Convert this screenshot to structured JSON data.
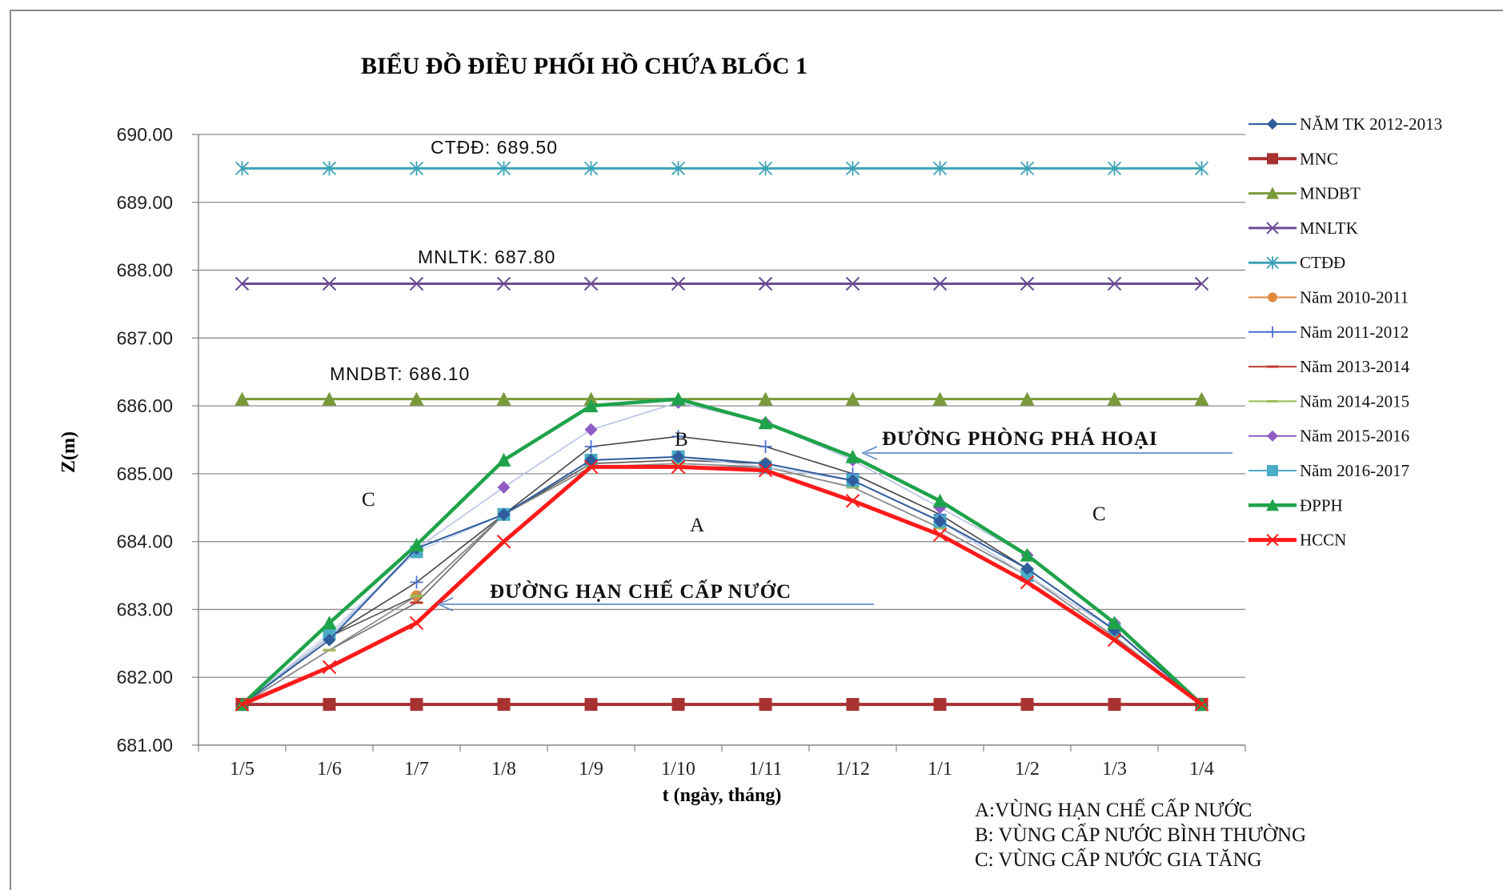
{
  "chart_data": {
    "type": "line",
    "title": "BIỂU ĐỒ ĐIỀU PHỐI HỒ CHỨA BLỐC 1",
    "xlabel": "t (ngày, tháng)",
    "ylabel": "Z(m)",
    "ylim": [
      681.0,
      690.0
    ],
    "y_ticks": [
      "681.00",
      "682.00",
      "683.00",
      "684.00",
      "685.00",
      "686.00",
      "687.00",
      "688.00",
      "689.00",
      "690.00"
    ],
    "categories": [
      "1/5",
      "1/6",
      "1/7",
      "1/8",
      "1/9",
      "1/10",
      "1/11",
      "1/12",
      "1/1",
      "1/2",
      "1/3",
      "1/4"
    ],
    "grid": "horizontal",
    "legend_position": "right",
    "series": [
      {
        "name": "NĂM TK 2012-2013",
        "color": "#2E5C9C",
        "marker": "diamond",
        "values": [
          681.6,
          682.55,
          683.9,
          684.4,
          685.2,
          685.25,
          685.15,
          684.9,
          684.3,
          683.6,
          682.7,
          681.6
        ]
      },
      {
        "name": "MNC",
        "color": "#A83232",
        "marker": "square",
        "values": [
          681.6,
          681.6,
          681.6,
          681.6,
          681.6,
          681.6,
          681.6,
          681.6,
          681.6,
          681.6,
          681.6,
          681.6
        ]
      },
      {
        "name": "MNDBT",
        "color": "#7A9A3A",
        "marker": "triangle",
        "values": [
          686.1,
          686.1,
          686.1,
          686.1,
          686.1,
          686.1,
          686.1,
          686.1,
          686.1,
          686.1,
          686.1,
          686.1
        ]
      },
      {
        "name": "MNLTK",
        "color": "#6A4C93",
        "marker": "x",
        "values": [
          687.8,
          687.8,
          687.8,
          687.8,
          687.8,
          687.8,
          687.8,
          687.8,
          687.8,
          687.8,
          687.8,
          687.8
        ]
      },
      {
        "name": "CTĐĐ",
        "color": "#3BA3B8",
        "marker": "star",
        "values": [
          689.5,
          689.5,
          689.5,
          689.5,
          689.5,
          689.5,
          689.5,
          689.5,
          689.5,
          689.5,
          689.5,
          689.5
        ]
      },
      {
        "name": "Năm 2010-2011",
        "color": "#E08A3C",
        "marker": "circle",
        "values": [
          681.6,
          682.6,
          683.2,
          684.4,
          685.15,
          685.2,
          685.15,
          684.9,
          684.3,
          683.5,
          682.7,
          681.6
        ]
      },
      {
        "name": "Năm 2011-2012",
        "color": "#4A6FD0",
        "marker": "plus",
        "values": [
          681.6,
          682.6,
          683.4,
          684.4,
          685.4,
          685.55,
          685.4,
          685.0,
          684.4,
          683.6,
          682.7,
          681.6
        ]
      },
      {
        "name": "Năm 2013-2014",
        "color": "#C0392B",
        "marker": "dash",
        "values": [
          681.6,
          682.4,
          683.1,
          684.4,
          685.1,
          685.1,
          685.1,
          684.8,
          684.2,
          683.5,
          682.6,
          681.6
        ]
      },
      {
        "name": "Năm 2014-2015",
        "color": "#9BBB59",
        "marker": "dash",
        "values": [
          681.6,
          682.4,
          683.2,
          684.4,
          685.1,
          685.15,
          685.1,
          684.8,
          684.2,
          683.5,
          682.6,
          681.6
        ]
      },
      {
        "name": "Năm 2015-2016",
        "color": "#8E5CC4",
        "marker": "diamond",
        "values": [
          681.6,
          682.6,
          683.9,
          684.8,
          685.65,
          686.05,
          685.75,
          685.2,
          684.5,
          683.8,
          682.8,
          681.6
        ]
      },
      {
        "name": "Năm 2016-2017",
        "color": "#4BACC6",
        "marker": "square",
        "values": [
          681.6,
          682.65,
          683.85,
          684.4,
          685.2,
          685.25,
          685.1,
          684.9,
          684.3,
          683.5,
          682.7,
          681.6
        ]
      },
      {
        "name": "ĐPPH",
        "color": "#1FA34A",
        "marker": "triangle",
        "values": [
          681.6,
          682.8,
          683.95,
          685.2,
          686.0,
          686.1,
          685.75,
          685.25,
          684.6,
          683.8,
          682.8,
          681.6
        ]
      },
      {
        "name": "HCCN",
        "color": "#FF1A1A",
        "marker": "x",
        "values": [
          681.6,
          682.15,
          682.8,
          684.0,
          685.1,
          685.1,
          685.05,
          684.6,
          684.1,
          683.4,
          682.55,
          681.6
        ]
      }
    ],
    "annotations": {
      "ctdd": "CTĐĐ: 689.50",
      "mnltk": "MNLTK: 687.80",
      "mndbt": "MNDBT: 686.10",
      "dpph_line": "ĐƯỜNG PHÒNG PHÁ HOẠI",
      "hccn_line": "ĐƯỜNG HẠN CHẾ CẤP NƯỚC",
      "region_a": "A",
      "region_b": "B",
      "region_c": "C"
    },
    "notes": [
      "A:VÙNG HẠN CHẾ CẤP NƯỚC",
      "B: VÙNG CẤP NƯỚC BÌNH THƯỜNG",
      "C: VÙNG CẤP NƯỚC GIA TĂNG"
    ]
  }
}
